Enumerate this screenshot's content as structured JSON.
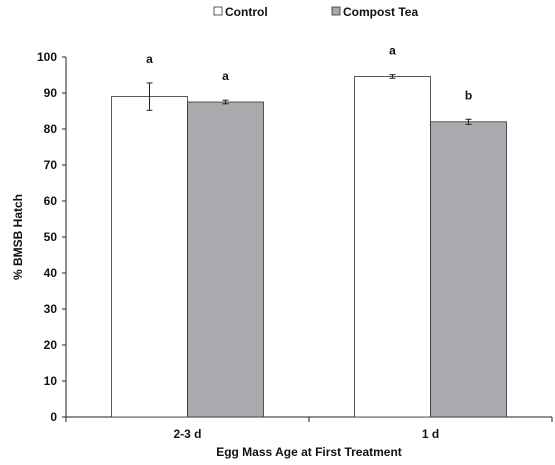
{
  "chart_data": {
    "type": "bar",
    "xlabel": "Egg Mass Age at First Treatment",
    "ylabel": "% BMSB Hatch",
    "ylim": [
      0,
      100
    ],
    "yticks": [
      0,
      10,
      20,
      30,
      40,
      50,
      60,
      70,
      80,
      90,
      100
    ],
    "categories": [
      "2-3 d",
      "1 d"
    ],
    "series": [
      {
        "name": "Control",
        "color": "#ffffff",
        "values": [
          89.0,
          94.6
        ],
        "errors": [
          3.8,
          0.5
        ],
        "letters": [
          "a",
          "a"
        ]
      },
      {
        "name": "Compost Tea",
        "color": "#a9aaae",
        "values": [
          87.5,
          82.0
        ],
        "errors": [
          0.5,
          0.7
        ],
        "letters": [
          "a",
          "b"
        ]
      }
    ],
    "legend_position": "top-center",
    "grid": false
  }
}
